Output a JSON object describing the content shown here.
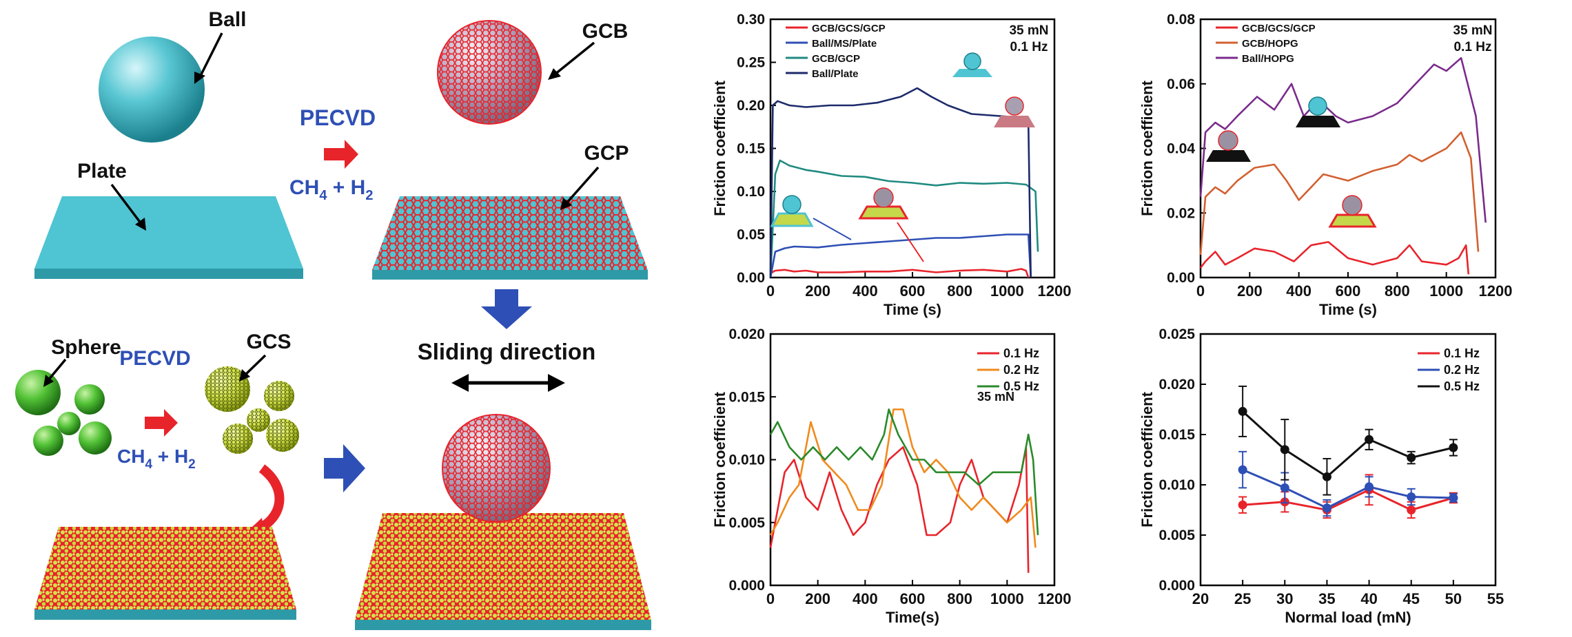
{
  "schematic": {
    "labels": {
      "ball": "Ball",
      "gcb": "GCB",
      "plate": "Plate",
      "gcp": "GCP",
      "pecvd_top": "PECVD",
      "gas_top_main": "CH",
      "gas_top_sub1": "4",
      "gas_top_plus": " + H",
      "gas_top_sub2": "2",
      "sphere": "Sphere",
      "gcs": "GCS",
      "pecvd_bottom": "PECVD",
      "gas_bottom_main": "CH",
      "gas_bottom_sub1": "4",
      "gas_bottom_plus": " + H",
      "gas_bottom_sub2": "2",
      "sliding": "Sliding direction"
    },
    "colors": {
      "cyan": "#4cc3d0",
      "red": "#e8242b",
      "blue": "#2e4fb5",
      "green": "#4fbf3a",
      "yellow": "#d8e84a"
    }
  },
  "chart_data": [
    {
      "type": "line",
      "title": "",
      "xlabel": "Time (s)",
      "ylabel": "Friction coefficient",
      "xlim": [
        0,
        1200
      ],
      "ylim": [
        0,
        0.3
      ],
      "xticks": [
        "0",
        "200",
        "400",
        "600",
        "800",
        "1000",
        "1200"
      ],
      "yticks": [
        "0.00",
        "0.05",
        "0.10",
        "0.15",
        "0.20",
        "0.25",
        "0.30"
      ],
      "annotations": [
        "35 mN",
        "0.1 Hz"
      ],
      "series": [
        {
          "name": "GCB/GCS/GCP",
          "color": "#e8242b",
          "x": [
            0,
            20,
            60,
            100,
            150,
            200,
            300,
            400,
            500,
            600,
            700,
            800,
            900,
            1000,
            1060,
            1080,
            1090
          ],
          "y": [
            0.005,
            0.008,
            0.009,
            0.007,
            0.008,
            0.006,
            0.006,
            0.007,
            0.007,
            0.009,
            0.006,
            0.008,
            0.009,
            0.007,
            0.01,
            0.008,
            0.0
          ]
        },
        {
          "name": "Ball/MS/Plate",
          "color": "#2e4fb5",
          "x": [
            0,
            20,
            60,
            100,
            200,
            300,
            400,
            500,
            600,
            700,
            800,
            900,
            1000,
            1060,
            1090,
            1100
          ],
          "y": [
            0.0,
            0.03,
            0.034,
            0.036,
            0.035,
            0.038,
            0.04,
            0.042,
            0.044,
            0.046,
            0.046,
            0.048,
            0.05,
            0.05,
            0.05,
            0.0
          ]
        },
        {
          "name": "GCB/GCP",
          "color": "#1f8a80",
          "x": [
            0,
            20,
            40,
            80,
            150,
            200,
            300,
            400,
            500,
            600,
            700,
            800,
            900,
            1000,
            1080,
            1120,
            1130
          ],
          "y": [
            0.0,
            0.12,
            0.136,
            0.13,
            0.125,
            0.123,
            0.118,
            0.117,
            0.112,
            0.11,
            0.107,
            0.11,
            0.109,
            0.11,
            0.108,
            0.1,
            0.03
          ]
        },
        {
          "name": "Ball/Plate",
          "color": "#1c2a6b",
          "x": [
            0,
            10,
            30,
            80,
            150,
            250,
            350,
            450,
            550,
            620,
            680,
            750,
            850,
            950,
            1050,
            1090,
            1100
          ],
          "y": [
            0.0,
            0.2,
            0.205,
            0.2,
            0.198,
            0.2,
            0.2,
            0.203,
            0.21,
            0.22,
            0.21,
            0.2,
            0.19,
            0.188,
            0.186,
            0.18,
            0.0
          ]
        }
      ]
    },
    {
      "type": "line",
      "title": "",
      "xlabel": "Time (s)",
      "ylabel": "Friction coefficient",
      "xlim": [
        0,
        1200
      ],
      "ylim": [
        0,
        0.08
      ],
      "xticks": [
        "0",
        "200",
        "400",
        "600",
        "800",
        "1000",
        "1200"
      ],
      "yticks": [
        "0.00",
        "0.02",
        "0.04",
        "0.06",
        "0.08"
      ],
      "annotations": [
        "35 mN",
        "0.1 Hz"
      ],
      "series": [
        {
          "name": "GCB/GCS/GCP",
          "color": "#e8242b",
          "x": [
            0,
            20,
            60,
            100,
            150,
            220,
            300,
            380,
            450,
            520,
            600,
            700,
            800,
            850,
            900,
            1000,
            1050,
            1080,
            1090
          ],
          "y": [
            0.003,
            0.005,
            0.008,
            0.004,
            0.006,
            0.009,
            0.008,
            0.005,
            0.01,
            0.011,
            0.006,
            0.004,
            0.006,
            0.01,
            0.005,
            0.004,
            0.006,
            0.01,
            0.001
          ]
        },
        {
          "name": "GCB/HOPG",
          "color": "#d2602f",
          "x": [
            0,
            20,
            60,
            100,
            150,
            220,
            300,
            350,
            400,
            450,
            500,
            600,
            700,
            800,
            850,
            900,
            1000,
            1060,
            1100,
            1130
          ],
          "y": [
            0.007,
            0.025,
            0.028,
            0.026,
            0.03,
            0.034,
            0.035,
            0.03,
            0.024,
            0.028,
            0.032,
            0.03,
            0.033,
            0.035,
            0.038,
            0.036,
            0.04,
            0.045,
            0.037,
            0.008
          ]
        },
        {
          "name": "Ball/HOPG",
          "color": "#7a2b8c",
          "x": [
            0,
            20,
            60,
            100,
            150,
            230,
            300,
            370,
            420,
            480,
            550,
            600,
            700,
            800,
            850,
            950,
            1000,
            1060,
            1120,
            1160
          ],
          "y": [
            0.025,
            0.045,
            0.048,
            0.046,
            0.05,
            0.056,
            0.052,
            0.06,
            0.05,
            0.055,
            0.05,
            0.048,
            0.05,
            0.054,
            0.058,
            0.066,
            0.064,
            0.068,
            0.05,
            0.017
          ]
        }
      ]
    },
    {
      "type": "line",
      "title": "",
      "xlabel": "Time(s)",
      "ylabel": "Friction coefficient",
      "xlim": [
        0,
        1200
      ],
      "ylim": [
        0,
        0.02
      ],
      "xticks": [
        "0",
        "200",
        "400",
        "600",
        "800",
        "1000",
        "1200"
      ],
      "yticks": [
        "0.000",
        "0.005",
        "0.010",
        "0.015",
        "0.020"
      ],
      "annotations": [
        "35 mN"
      ],
      "series": [
        {
          "name": "0.1 Hz",
          "color": "#e8242b",
          "x": [
            0,
            30,
            60,
            100,
            150,
            200,
            250,
            300,
            350,
            400,
            450,
            500,
            560,
            620,
            660,
            700,
            760,
            800,
            850,
            900,
            950,
            1000,
            1050,
            1080,
            1090
          ],
          "y": [
            0.003,
            0.006,
            0.009,
            0.01,
            0.007,
            0.006,
            0.009,
            0.006,
            0.004,
            0.005,
            0.008,
            0.01,
            0.011,
            0.008,
            0.004,
            0.004,
            0.005,
            0.008,
            0.01,
            0.007,
            0.006,
            0.005,
            0.008,
            0.011,
            0.001
          ]
        },
        {
          "name": "0.2 Hz",
          "color": "#f08a1c",
          "x": [
            0,
            30,
            80,
            120,
            170,
            220,
            270,
            320,
            370,
            420,
            470,
            520,
            560,
            600,
            650,
            700,
            750,
            800,
            850,
            900,
            950,
            1000,
            1060,
            1100,
            1120
          ],
          "y": [
            0.004,
            0.005,
            0.007,
            0.008,
            0.013,
            0.01,
            0.009,
            0.008,
            0.006,
            0.006,
            0.008,
            0.014,
            0.014,
            0.011,
            0.009,
            0.01,
            0.009,
            0.007,
            0.006,
            0.007,
            0.006,
            0.005,
            0.006,
            0.007,
            0.003
          ]
        },
        {
          "name": "0.5 Hz",
          "color": "#2a8a2a",
          "x": [
            0,
            30,
            80,
            130,
            180,
            230,
            280,
            330,
            380,
            430,
            480,
            500,
            540,
            600,
            650,
            700,
            760,
            820,
            880,
            940,
            1000,
            1060,
            1090,
            1110,
            1130
          ],
          "y": [
            0.012,
            0.013,
            0.011,
            0.01,
            0.011,
            0.01,
            0.011,
            0.01,
            0.011,
            0.01,
            0.012,
            0.014,
            0.012,
            0.01,
            0.01,
            0.009,
            0.009,
            0.009,
            0.008,
            0.009,
            0.009,
            0.009,
            0.012,
            0.01,
            0.004
          ]
        }
      ]
    },
    {
      "type": "line",
      "title": "",
      "xlabel": "Normal load (mN)",
      "ylabel": "Friction coefficient",
      "xlim": [
        20,
        55
      ],
      "ylim": [
        0,
        0.025
      ],
      "xticks": [
        "20",
        "25",
        "30",
        "35",
        "40",
        "45",
        "50",
        "55"
      ],
      "yticks": [
        "0.000",
        "0.005",
        "0.010",
        "0.015",
        "0.020",
        "0.025"
      ],
      "series": [
        {
          "name": "0.1 Hz",
          "color": "#e8242b",
          "x": [
            25,
            30,
            35,
            40,
            45,
            50
          ],
          "y": [
            0.008,
            0.0083,
            0.0075,
            0.0095,
            0.0075,
            0.0087
          ],
          "err": [
            0.0008,
            0.001,
            0.0008,
            0.0015,
            0.0008,
            0.0005
          ]
        },
        {
          "name": "0.2 Hz",
          "color": "#2e4fb5",
          "x": [
            25,
            30,
            35,
            40,
            45,
            50
          ],
          "y": [
            0.0115,
            0.0097,
            0.0077,
            0.0098,
            0.0088,
            0.0087
          ],
          "err": [
            0.0018,
            0.0015,
            0.0008,
            0.001,
            0.0008,
            0.0004
          ]
        },
        {
          "name": "0.5 Hz",
          "color": "#111111",
          "x": [
            25,
            30,
            35,
            40,
            45,
            50
          ],
          "y": [
            0.0173,
            0.0135,
            0.0108,
            0.0145,
            0.0127,
            0.0137
          ],
          "err": [
            0.0025,
            0.003,
            0.0018,
            0.001,
            0.0006,
            0.0008
          ]
        }
      ]
    }
  ]
}
